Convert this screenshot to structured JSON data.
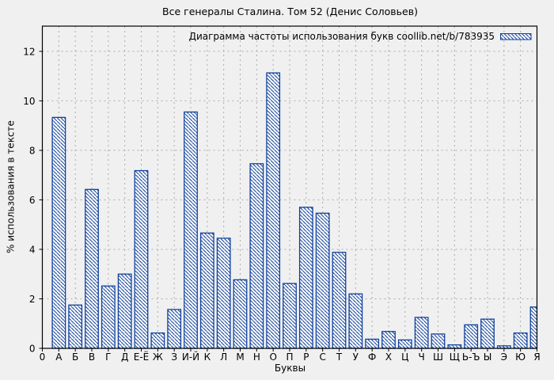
{
  "chart_data": {
    "type": "bar",
    "title": "Все генералы Сталина. Том 52 (Денис Соловьев)",
    "legend": "Диаграмма частоты использования букв coollib.net/b/783935",
    "legend_position": "top-right",
    "xlabel": "Буквы",
    "ylabel": "% использования в тексте",
    "origin_tick_label": "0",
    "categories": [
      "А",
      "Б",
      "В",
      "Г",
      "Д",
      "Е-Ё",
      "Ж",
      "З",
      "И-Й",
      "К",
      "Л",
      "М",
      "Н",
      "О",
      "П",
      "Р",
      "С",
      "Т",
      "У",
      "Ф",
      "Х",
      "Ц",
      "Ч",
      "Ш",
      "Щ",
      "Ь-Ъ",
      "Ы",
      "Э",
      "Ю",
      "Я"
    ],
    "values": [
      9.33,
      1.75,
      6.42,
      2.52,
      3.0,
      7.18,
      0.62,
      1.57,
      9.55,
      4.66,
      4.45,
      2.77,
      7.46,
      11.13,
      2.62,
      5.7,
      5.46,
      3.88,
      2.2,
      0.37,
      0.68,
      0.34,
      1.25,
      0.58,
      0.14,
      0.95,
      1.18,
      0.1,
      0.62,
      1.67
    ],
    "yticks": [
      0,
      2,
      4,
      6,
      8,
      10,
      12
    ],
    "ylim": [
      0,
      13.02
    ],
    "grid": true,
    "grid_style": "dashed",
    "colors": {
      "bar_border": "#10419e",
      "bar_hatch": "#10419e",
      "bar_fill": "#fcfcfc",
      "grid": "#ababab",
      "axis": "#000000",
      "text": "#000000",
      "background": "#f0f0f0"
    }
  }
}
